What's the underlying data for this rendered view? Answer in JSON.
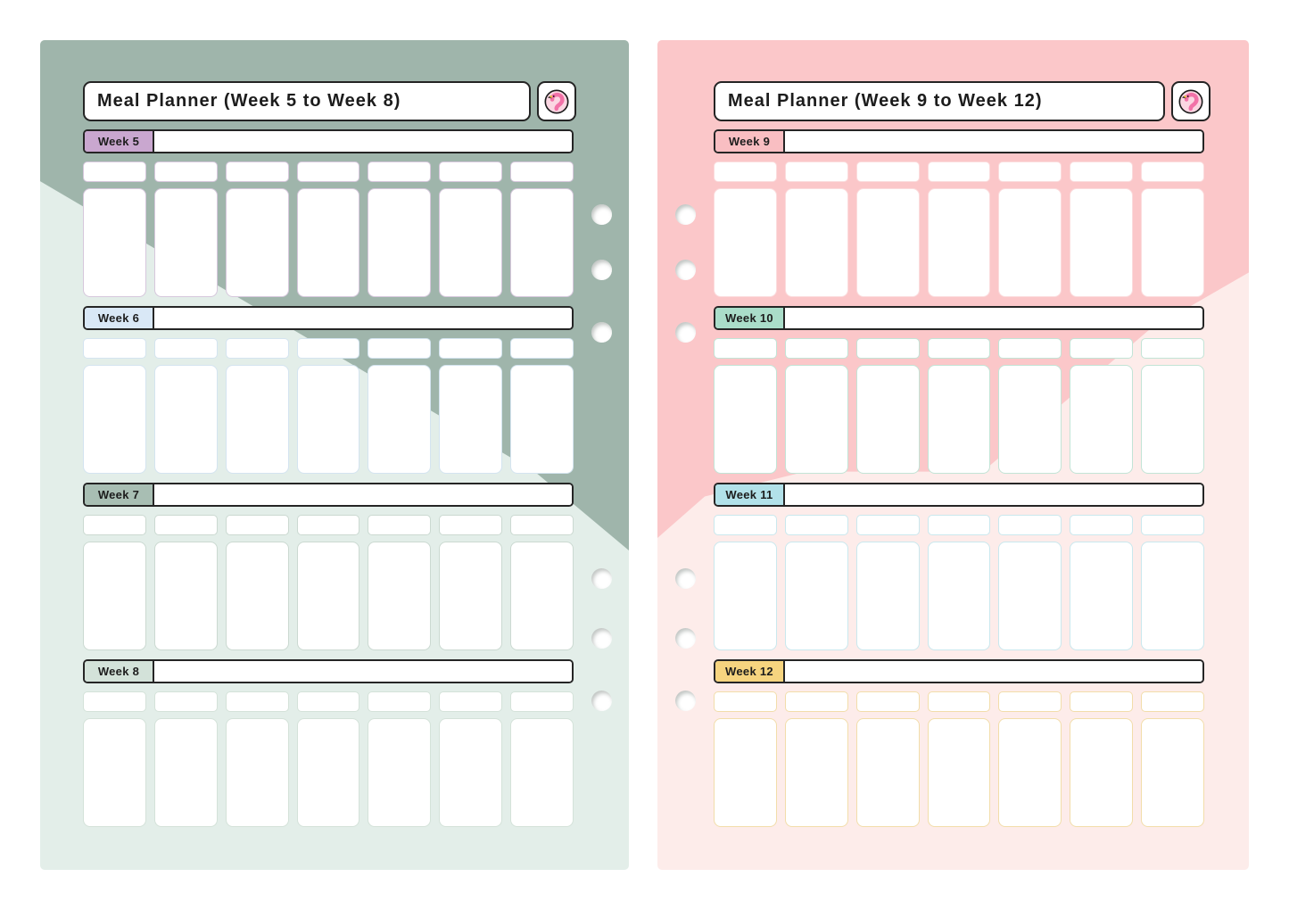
{
  "canvas": {
    "background": "#ffffff"
  },
  "pages": [
    {
      "title": "Meal Planner (Week 5 to Week 8)",
      "icon": "flamingo-icon",
      "colors": {
        "bg": "#e3eee9",
        "banner": "#9fb5ab"
      },
      "binder_holes": 6,
      "weeks": [
        {
          "label": "Week 5",
          "tab_color": "#c9a7cf",
          "cell_border": "#d6c7dc",
          "days": 7
        },
        {
          "label": "Week 6",
          "tab_color": "#d9e8f6",
          "cell_border": "#d4e4f0",
          "days": 7
        },
        {
          "label": "Week 7",
          "tab_color": "#a8beb3",
          "cell_border": "#cbd9d1",
          "days": 7
        },
        {
          "label": "Week 8",
          "tab_color": "#d3e2d9",
          "cell_border": "#d4e2d9",
          "days": 7
        }
      ]
    },
    {
      "title": "Meal Planner (Week 9 to Week 12)",
      "icon": "flamingo-icon",
      "colors": {
        "bg": "#fdecea",
        "banner": "#fbc7c9"
      },
      "binder_holes": 6,
      "weeks": [
        {
          "label": "Week 9",
          "tab_color": "#f9bec2",
          "cell_border": "#fbdcdd",
          "days": 7
        },
        {
          "label": "Week 10",
          "tab_color": "#aaddc9",
          "cell_border": "#c2e4d6",
          "days": 7
        },
        {
          "label": "Week 11",
          "tab_color": "#b2e1e9",
          "cell_border": "#c9e8ee",
          "days": 7
        },
        {
          "label": "Week 12",
          "tab_color": "#f6d47f",
          "cell_border": "#f2ddaa",
          "days": 7
        }
      ]
    }
  ]
}
